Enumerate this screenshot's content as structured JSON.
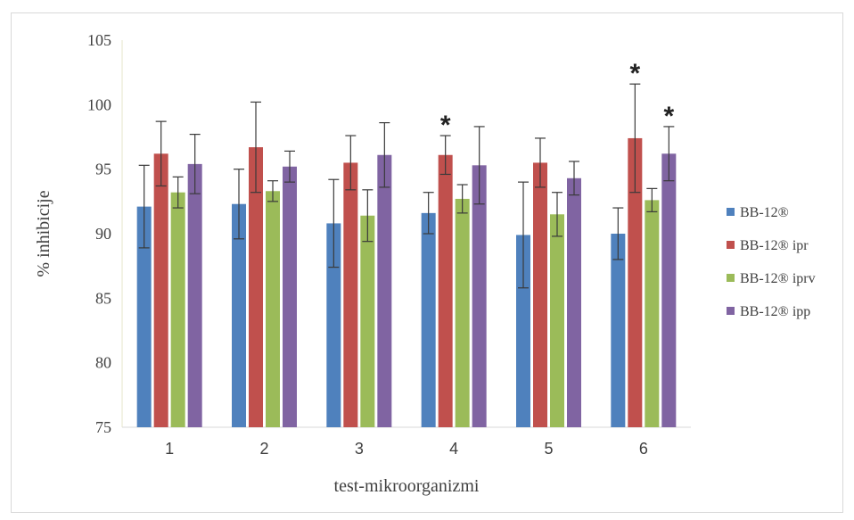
{
  "chart_data": {
    "type": "bar",
    "categories": [
      "1",
      "2",
      "3",
      "4",
      "5",
      "6"
    ],
    "series": [
      {
        "name": "BB-12®",
        "color": "#4f81bd",
        "values": [
          92.1,
          92.3,
          90.8,
          91.6,
          89.9,
          90.0
        ],
        "errors": [
          3.2,
          2.7,
          3.4,
          1.6,
          4.1,
          2.0
        ]
      },
      {
        "name": "BB-12® ipr",
        "color": "#c0504d",
        "values": [
          96.2,
          96.7,
          95.5,
          96.1,
          95.5,
          97.4
        ],
        "errors": [
          2.5,
          3.5,
          2.1,
          1.5,
          1.9,
          4.2
        ]
      },
      {
        "name": "BB-12® iprv",
        "color": "#9bbb59",
        "values": [
          93.2,
          93.3,
          91.4,
          92.7,
          91.5,
          92.6
        ],
        "errors": [
          1.2,
          0.8,
          2.0,
          1.1,
          1.7,
          0.9
        ]
      },
      {
        "name": "BB-12® ipp",
        "color": "#8064a2",
        "values": [
          95.4,
          95.2,
          96.1,
          95.3,
          94.3,
          96.2
        ],
        "errors": [
          2.3,
          1.2,
          2.5,
          3.0,
          1.3,
          2.1
        ]
      }
    ],
    "significance": [
      {
        "category_index": 3,
        "series_index": 1,
        "label": "*"
      },
      {
        "category_index": 5,
        "series_index": 1,
        "label": "*"
      },
      {
        "category_index": 5,
        "series_index": 3,
        "label": "*"
      }
    ],
    "ylim": [
      75,
      105
    ],
    "yticks": [
      "75",
      "80",
      "85",
      "90",
      "95",
      "100",
      "105"
    ],
    "ylabel": "% inhibicije",
    "xlabel": "test-mikroorganizmi",
    "legend_position": "right",
    "grid": false
  }
}
